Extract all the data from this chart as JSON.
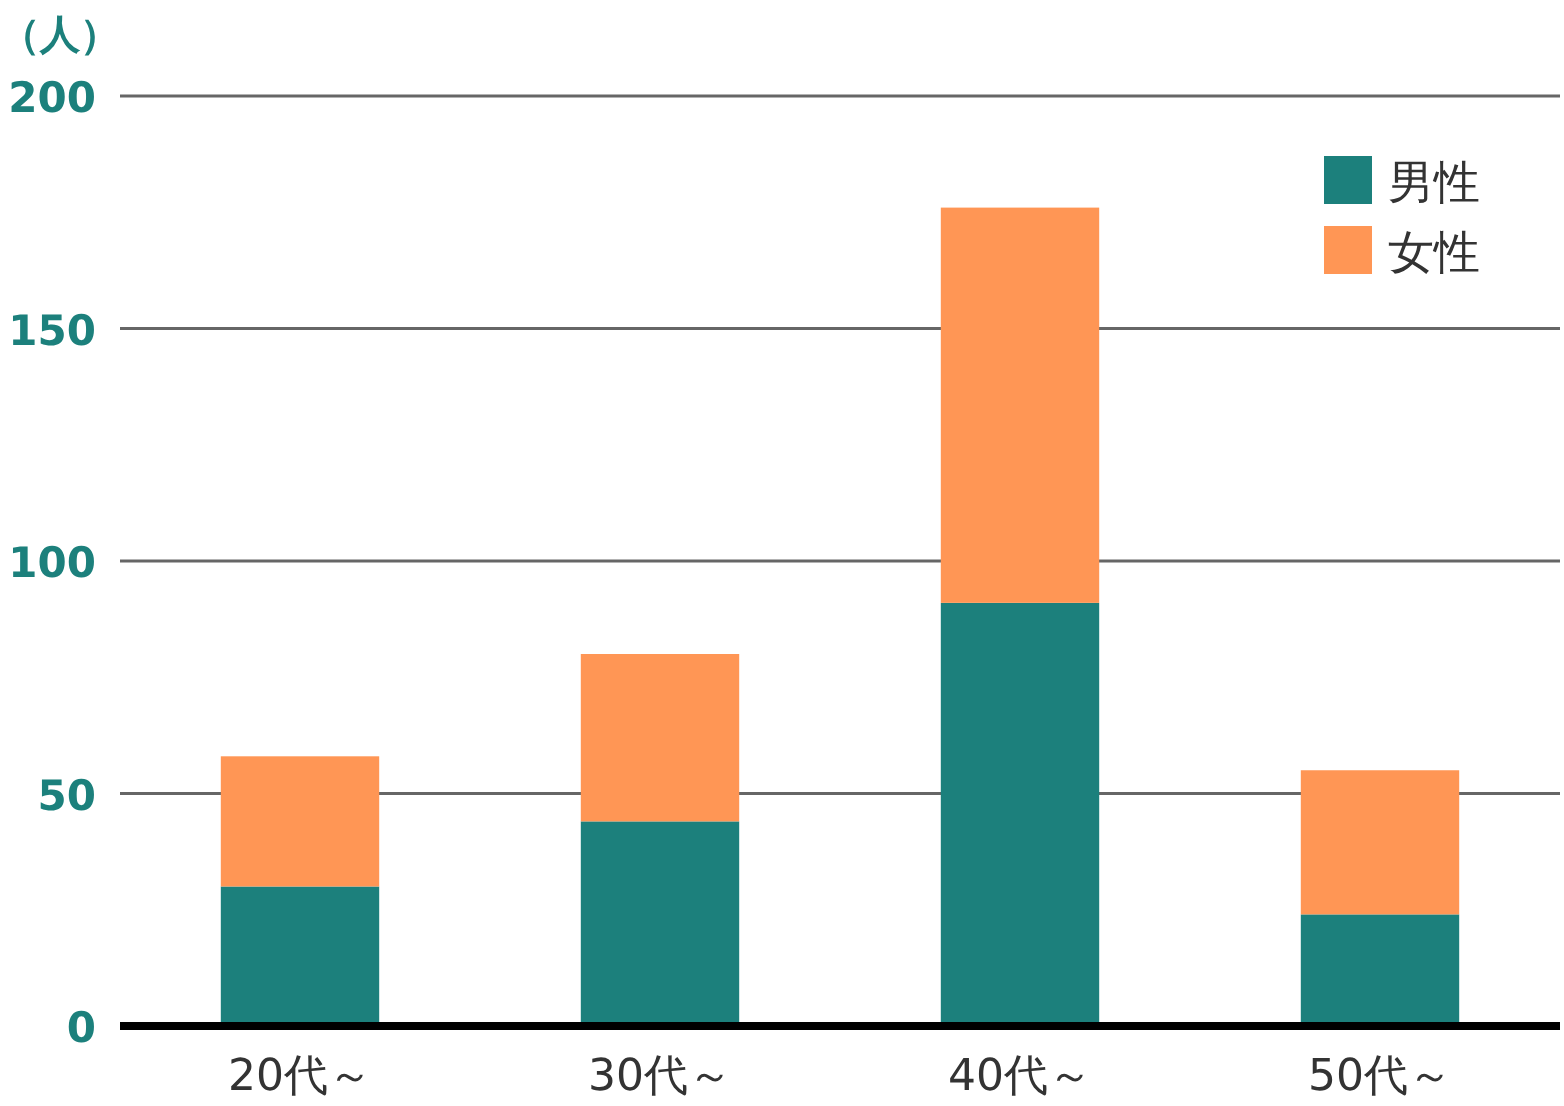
{
  "chart_data": {
    "type": "bar",
    "stacked": true,
    "ylabel": "（人）",
    "categories": [
      "20代～",
      "30代～",
      "40代～",
      "50代～"
    ],
    "series": [
      {
        "name": "男性",
        "color": "#1c807c",
        "values": [
          30,
          44,
          91,
          24
        ]
      },
      {
        "name": "女性",
        "color": "#ff9655",
        "values": [
          28,
          36,
          85,
          31
        ]
      }
    ],
    "ylim": [
      0,
      200
    ],
    "yticks": [
      0,
      50,
      100,
      150,
      200
    ],
    "grid": "y",
    "legend": "top right"
  }
}
